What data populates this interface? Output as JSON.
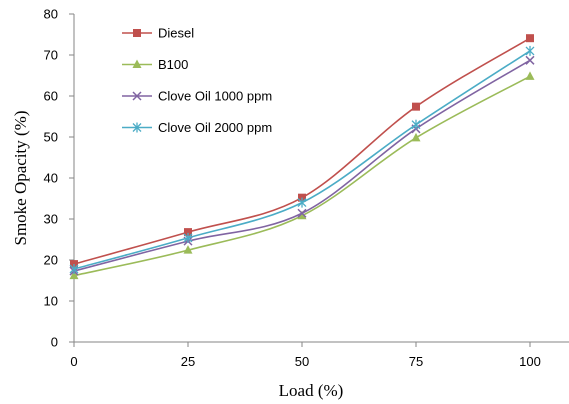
{
  "chart_data": {
    "type": "line",
    "title": "",
    "xlabel": "Load (%)",
    "ylabel": "Smoke Opacity (%)",
    "x": [
      0,
      25,
      50,
      75,
      100
    ],
    "xticks": [
      0,
      25,
      50,
      75,
      100
    ],
    "yticks": [
      0,
      10,
      20,
      30,
      40,
      50,
      60,
      70,
      80
    ],
    "xlim": [
      0,
      100
    ],
    "ylim": [
      0,
      80
    ],
    "grid": false,
    "legend_position": "top-left",
    "smooth": true,
    "series": [
      {
        "name": "Diesel",
        "color": "#C0504D",
        "marker": "square",
        "values": [
          19,
          26.8,
          35.2,
          57.4,
          74.1
        ]
      },
      {
        "name": "B100",
        "color": "#9BBB59",
        "marker": "triangle",
        "values": [
          16.2,
          22.4,
          30.8,
          49.8,
          64.8
        ]
      },
      {
        "name": "Clove Oil  1000 ppm",
        "color": "#8064A2",
        "marker": "x",
        "values": [
          17.3,
          24.6,
          31.4,
          52,
          68.7
        ]
      },
      {
        "name": "Clove Oil 2000 ppm",
        "color": "#4BACC6",
        "marker": "star",
        "values": [
          17.8,
          25.4,
          34,
          53,
          71
        ]
      }
    ]
  }
}
